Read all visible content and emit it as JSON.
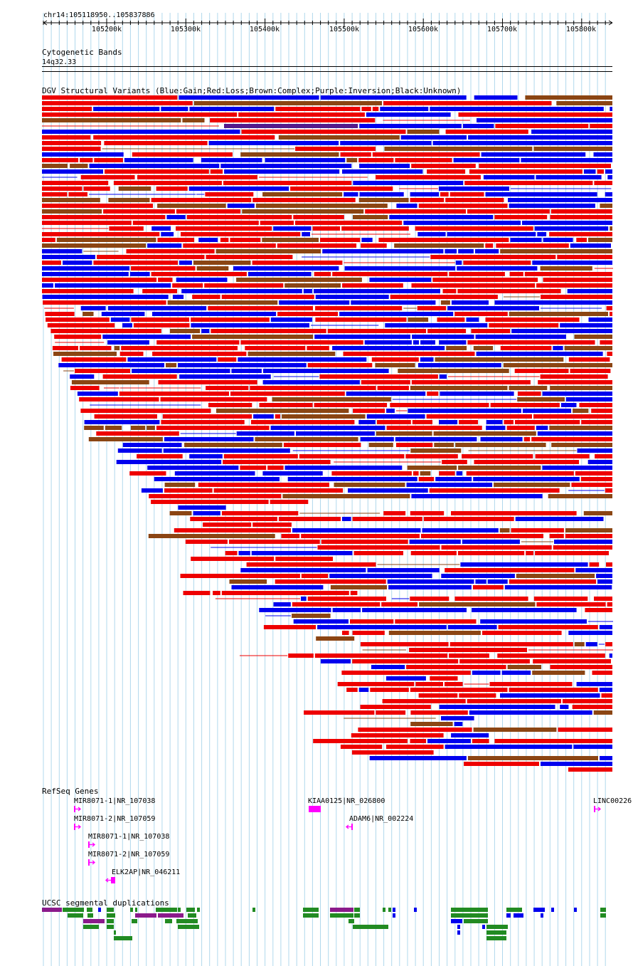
{
  "window": {
    "title": "chr14:105118950..105837886"
  },
  "ruler": {
    "ticks": [
      "105200k",
      "105300k",
      "105400k",
      "105500k",
      "105600k",
      "105700k",
      "105800k"
    ]
  },
  "cytoband": {
    "title": "Cytogenetic Bands",
    "band": "14q32.33"
  },
  "dgv": {
    "title": "DGV Structural Variants (Blue:Gain;Red:Loss;Brown:Complex;Purple:Inversion;Black:Unknown)",
    "colors": {
      "gain": "#0000ee",
      "loss": "#ee0000",
      "complex": "#8b4513",
      "inversion": "#551a8b",
      "unknown": "#000000"
    }
  },
  "refseq": {
    "title": "RefSeq Genes",
    "genes": [
      {
        "label": "MIR8071-1|NR_107038",
        "strand": "+"
      },
      {
        "label": "MIR8071-2|NR_107059",
        "strand": "+"
      },
      {
        "label": "MIR8071-1|NR_107038",
        "strand": "+"
      },
      {
        "label": "MIR8071-2|NR_107059",
        "strand": "+"
      },
      {
        "label": "ELK2AP|NR_046211",
        "strand": "-"
      },
      {
        "label": "KIAA0125|NR_026800",
        "strand": "+"
      },
      {
        "label": "ADAM6|NR_002224",
        "strand": "-"
      },
      {
        "label": "LINC00226",
        "strand": "+"
      }
    ],
    "color": "#ff00ff"
  },
  "segdup": {
    "title": "UCSC segmental duplications",
    "colors": {
      "green": "#228b22",
      "purple": "#8b1a8b",
      "blue": "#0000ee"
    }
  }
}
